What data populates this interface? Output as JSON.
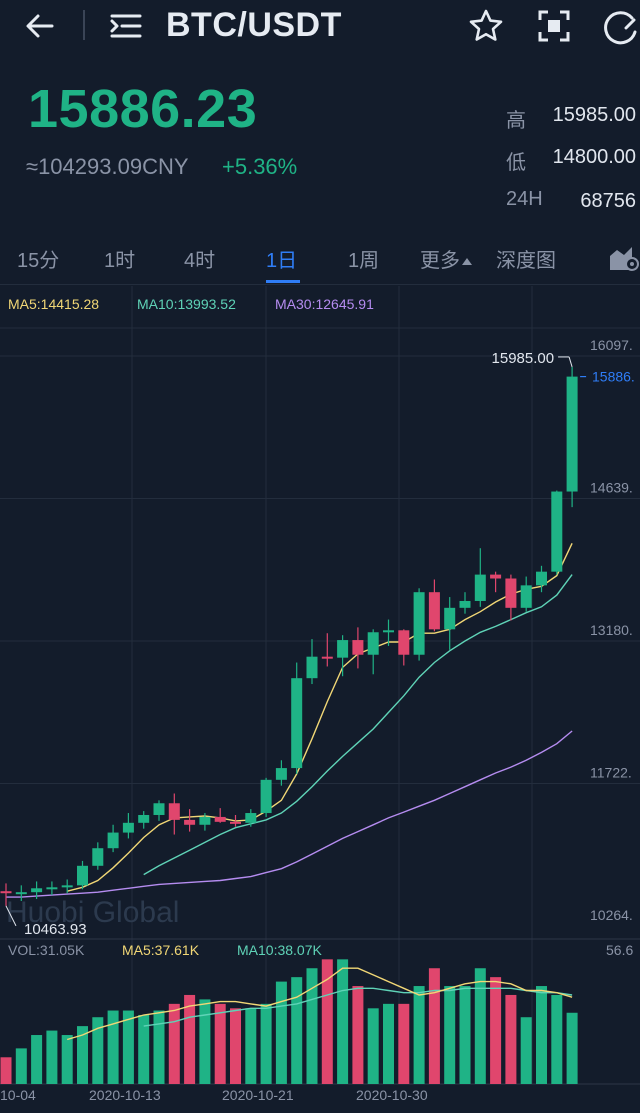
{
  "header": {
    "pair": "BTC/USDT",
    "icons": [
      "back-arrow-icon",
      "menu-list-icon",
      "star-icon",
      "scan-icon",
      "refresh-icon"
    ]
  },
  "ticker": {
    "price": "15886.23",
    "cny": "≈104293.09CNY",
    "change": "+5.36%",
    "high_label": "高",
    "high": "15985.00",
    "low_label": "低",
    "low": "14800.00",
    "vol_label": "24H",
    "vol": "68756"
  },
  "tabs": [
    "15分",
    "1时",
    "4时",
    "1日",
    "1周",
    "更多",
    "深度图"
  ],
  "active_tab": "1日",
  "indicators": {
    "ma5": "MA5:14415.28",
    "ma10": "MA10:13993.52",
    "ma30": "MA30:12645.91",
    "vol": "VOL:31.05K",
    "vol_ma5": "MA5:37.61K",
    "vol_ma10": "MA10:38.07K"
  },
  "watermark": "Huobi Global",
  "colors": {
    "up": "#1fb386",
    "down": "#e0466d",
    "ma5": "#f1d776",
    "ma10": "#5fd3b7",
    "ma30": "#b58cf0",
    "accent": "#2f7df6",
    "background": "#131c2b"
  },
  "chart_data": {
    "type": "candlestick",
    "y_ticks": [
      "16097.",
      "14639.",
      "13180.",
      "11722.",
      "10264."
    ],
    "y_tick_values": [
      16097,
      14639,
      13180,
      11722,
      10264
    ],
    "ylim": [
      10264,
      16097
    ],
    "vol_ymax_label": "56.6",
    "vol_ymax": 56.6,
    "max_label": "15985.00",
    "min_label": "10463.93",
    "last_price_label": "15886.",
    "last_price": 15886.23,
    "x_labels": [
      "10-04",
      "2020-10-13",
      "2020-10-21",
      "2020-10-30"
    ],
    "candles": [
      {
        "o": 10620,
        "h": 10700,
        "l": 10470,
        "c": 10600
      },
      {
        "o": 10600,
        "h": 10680,
        "l": 10520,
        "c": 10610
      },
      {
        "o": 10610,
        "h": 10720,
        "l": 10540,
        "c": 10650
      },
      {
        "o": 10650,
        "h": 10720,
        "l": 10580,
        "c": 10660
      },
      {
        "o": 10660,
        "h": 10740,
        "l": 10600,
        "c": 10680
      },
      {
        "o": 10680,
        "h": 10930,
        "l": 10640,
        "c": 10880
      },
      {
        "o": 10880,
        "h": 11120,
        "l": 10840,
        "c": 11060
      },
      {
        "o": 11060,
        "h": 11300,
        "l": 11020,
        "c": 11220
      },
      {
        "o": 11220,
        "h": 11420,
        "l": 11160,
        "c": 11320
      },
      {
        "o": 11320,
        "h": 11440,
        "l": 11260,
        "c": 11400
      },
      {
        "o": 11400,
        "h": 11550,
        "l": 11340,
        "c": 11520
      },
      {
        "o": 11520,
        "h": 11620,
        "l": 11200,
        "c": 11350
      },
      {
        "o": 11350,
        "h": 11460,
        "l": 11230,
        "c": 11300
      },
      {
        "o": 11300,
        "h": 11420,
        "l": 11240,
        "c": 11380
      },
      {
        "o": 11380,
        "h": 11470,
        "l": 11320,
        "c": 11330
      },
      {
        "o": 11330,
        "h": 11400,
        "l": 11280,
        "c": 11320
      },
      {
        "o": 11320,
        "h": 11460,
        "l": 11280,
        "c": 11420
      },
      {
        "o": 11420,
        "h": 11780,
        "l": 11380,
        "c": 11760
      },
      {
        "o": 11760,
        "h": 11960,
        "l": 11700,
        "c": 11880
      },
      {
        "o": 11880,
        "h": 12960,
        "l": 11820,
        "c": 12800
      },
      {
        "o": 12800,
        "h": 13200,
        "l": 12740,
        "c": 13020
      },
      {
        "o": 13020,
        "h": 13260,
        "l": 12920,
        "c": 13010
      },
      {
        "o": 13010,
        "h": 13240,
        "l": 12820,
        "c": 13190
      },
      {
        "o": 13190,
        "h": 13320,
        "l": 12900,
        "c": 13040
      },
      {
        "o": 13040,
        "h": 13300,
        "l": 12840,
        "c": 13270
      },
      {
        "o": 13270,
        "h": 13400,
        "l": 13130,
        "c": 13290
      },
      {
        "o": 13290,
        "h": 13300,
        "l": 12930,
        "c": 13040
      },
      {
        "o": 13040,
        "h": 13720,
        "l": 12980,
        "c": 13680
      },
      {
        "o": 13680,
        "h": 13810,
        "l": 13280,
        "c": 13300
      },
      {
        "o": 13300,
        "h": 13630,
        "l": 13090,
        "c": 13520
      },
      {
        "o": 13520,
        "h": 13680,
        "l": 13460,
        "c": 13590
      },
      {
        "o": 13590,
        "h": 14130,
        "l": 13530,
        "c": 13860
      },
      {
        "o": 13860,
        "h": 13890,
        "l": 13680,
        "c": 13820
      },
      {
        "o": 13820,
        "h": 13860,
        "l": 13390,
        "c": 13520
      },
      {
        "o": 13520,
        "h": 13840,
        "l": 13480,
        "c": 13750
      },
      {
        "o": 13750,
        "h": 13950,
        "l": 13680,
        "c": 13890
      },
      {
        "o": 13890,
        "h": 14720,
        "l": 13860,
        "c": 14710
      },
      {
        "o": 14710,
        "h": 15985,
        "l": 14550,
        "c": 15886
      }
    ],
    "ma5": [
      null,
      null,
      null,
      null,
      10620,
      10660,
      10730,
      10860,
      11010,
      11170,
      11300,
      11370,
      11380,
      11390,
      11370,
      11340,
      11350,
      11440,
      11550,
      11820,
      12180,
      12560,
      12910,
      13050,
      13110,
      13170,
      13170,
      13260,
      13260,
      13300,
      13400,
      13480,
      13580,
      13660,
      13710,
      13740,
      13850,
      14180
    ],
    "ma10": [
      null,
      null,
      null,
      null,
      null,
      null,
      null,
      null,
      null,
      10790,
      10880,
      10960,
      11040,
      11120,
      11200,
      11270,
      11310,
      11350,
      11420,
      11540,
      11690,
      11850,
      12000,
      12140,
      12280,
      12450,
      12620,
      12810,
      12960,
      13080,
      13180,
      13270,
      13330,
      13400,
      13470,
      13530,
      13650,
      13860
    ],
    "ma30": [
      10560,
      10560,
      10570,
      10580,
      10590,
      10600,
      10610,
      10630,
      10650,
      10670,
      10690,
      10700,
      10710,
      10720,
      10730,
      10750,
      10770,
      10810,
      10850,
      10920,
      11000,
      11080,
      11160,
      11230,
      11300,
      11370,
      11430,
      11490,
      11550,
      11620,
      11690,
      11760,
      11830,
      11890,
      11960,
      12040,
      12130,
      12260
    ],
    "volumes": [
      12,
      16,
      22,
      24,
      22,
      26,
      30,
      33,
      33,
      31,
      33,
      36,
      40,
      38,
      36,
      34,
      34,
      36,
      46,
      48,
      52,
      56,
      56,
      44,
      34,
      36,
      36,
      44,
      52,
      44,
      44,
      52,
      48,
      40,
      30,
      44,
      40,
      32
    ],
    "vol_ma5": [
      null,
      null,
      null,
      null,
      20,
      22,
      25,
      27,
      29,
      31,
      32,
      33,
      35,
      36,
      37,
      37,
      36,
      35,
      37,
      39,
      43,
      47,
      52,
      52,
      49,
      46,
      43,
      40,
      41,
      43,
      45,
      46,
      46,
      45,
      42,
      42,
      41,
      39
    ],
    "vol_ma10": [
      null,
      null,
      null,
      null,
      null,
      null,
      null,
      null,
      null,
      26,
      27,
      28,
      30,
      31,
      32,
      33,
      34,
      34,
      35,
      36,
      38,
      40,
      42,
      43,
      43,
      42,
      41,
      41,
      42,
      42,
      43,
      43,
      43,
      43,
      42,
      41,
      41,
      40
    ]
  }
}
